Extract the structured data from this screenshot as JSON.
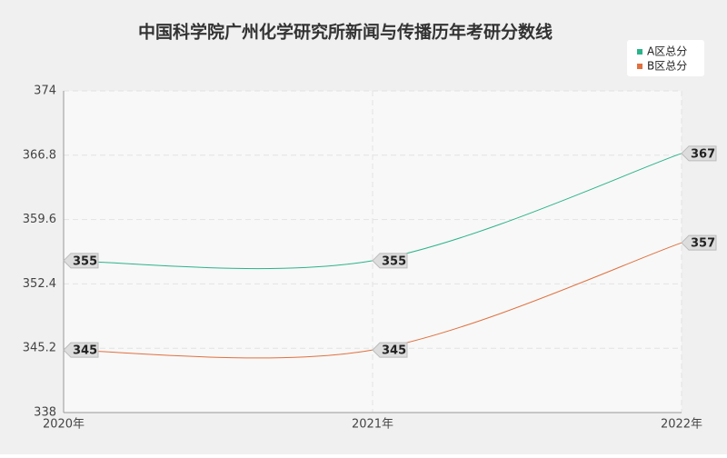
{
  "chart_data": {
    "type": "line",
    "title": "中国科学院广州化学研究所新闻与传播历年考研分数线",
    "categories": [
      "2020年",
      "2021年",
      "2022年"
    ],
    "series": [
      {
        "name": "A区总分",
        "color": "#2bb38a",
        "values": [
          355,
          355,
          367
        ]
      },
      {
        "name": "B区总分",
        "color": "#e0703f",
        "values": [
          345,
          345,
          357
        ]
      }
    ],
    "ylim": [
      338,
      374
    ],
    "yticks": [
      338,
      345.2,
      352.4,
      359.6,
      366.8,
      374
    ],
    "grid": true,
    "legend": "top-right",
    "smooth": true
  }
}
